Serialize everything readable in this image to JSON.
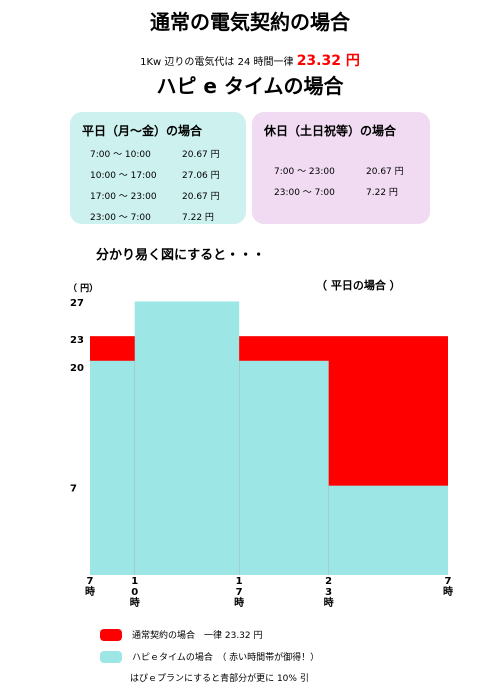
{
  "header": {
    "title_normal": "通常の電気契約の場合",
    "rate_line_prefix": "1Kw 辺りの電気代は 24 時間一律",
    "rate_line_value": "23.32 円",
    "title_hapie": "ハピ e タイムの場合"
  },
  "weekday_box": {
    "title": "平日（月～金）の場合",
    "rows": [
      {
        "time": "7:00 ～ 10:00",
        "price": "20.67 円"
      },
      {
        "time": "10:00 ～ 17:00",
        "price": "27.06 円"
      },
      {
        "time": "17:00 ～ 23:00",
        "price": "20.67 円"
      },
      {
        "time": "23:00 ～ 7:00",
        "price": "7.22 円"
      }
    ]
  },
  "holiday_box": {
    "title": "休日（土日祝等）の場合",
    "rows": [
      {
        "time": "7:00 ～ 23:00",
        "price": "20.67 円"
      },
      {
        "time": "23:00 ～ 7:00",
        "price": "7.22 円"
      }
    ]
  },
  "subheading": "分かり易く図にすると・・・",
  "chart_data": {
    "type": "area",
    "title": "（ 平日の場合 ）",
    "ylabel": "（ 円）",
    "ytick_labels": [
      "27",
      "23",
      "20",
      "7"
    ],
    "yticks": [
      27,
      23,
      20,
      7
    ],
    "ylim": [
      0,
      27.5
    ],
    "xtick_labels": [
      "7\n時",
      "1\n0\n時",
      "1\n7\n時",
      "2\n3\n時",
      "7\n時"
    ],
    "x_hours": [
      7,
      10,
      17,
      23,
      31
    ],
    "series": [
      {
        "name": "通常契約の場合",
        "color": "#ff0000",
        "segments": [
          {
            "x0": 7,
            "x1": 31,
            "y": 23.32
          }
        ]
      },
      {
        "name": "ハピｅタイムの場合",
        "color": "#9ce6e6",
        "segments": [
          {
            "x0": 7,
            "x1": 10,
            "y": 20.67
          },
          {
            "x0": 10,
            "x1": 17,
            "y": 27.06
          },
          {
            "x0": 17,
            "x1": 23,
            "y": 20.67
          },
          {
            "x0": 23,
            "x1": 31,
            "y": 7.22
          }
        ]
      }
    ]
  },
  "legend": {
    "normal": {
      "label": "通常契約の場合　一律 23.32 円",
      "color": "#ff0000"
    },
    "hapie": {
      "label": "ハピｅタイムの場合　（ 赤い時間帯が御得！）",
      "color": "#9ce6e6"
    }
  },
  "note": "はぴｅプランにすると青部分が更に 10% 引"
}
